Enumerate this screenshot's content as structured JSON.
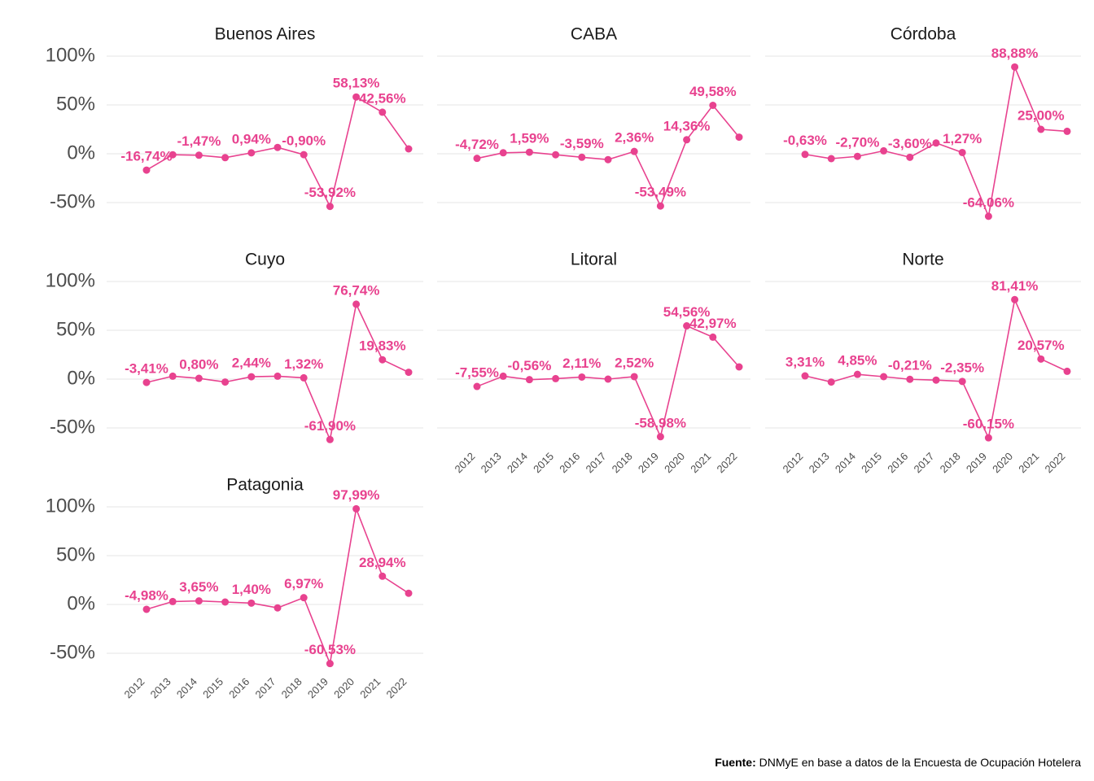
{
  "chart_data": [
    {
      "type": "line",
      "title": "Buenos Aires",
      "categories": [
        "2012",
        "2013",
        "2014",
        "2015",
        "2016",
        "2017",
        "2018",
        "2019",
        "2020",
        "2021",
        "2022"
      ],
      "series": [
        {
          "color": "#e8428f",
          "values": [
            -16.74,
            -1.0,
            -1.47,
            -4.0,
            0.94,
            6.5,
            -0.9,
            -53.92,
            58.13,
            42.56,
            5.0
          ],
          "value_labels": [
            "-16,74%",
            null,
            "-1,47%",
            null,
            "0,94%",
            null,
            "-0,90%",
            "-53,92%",
            "58,13%",
            "42,56%",
            null
          ]
        }
      ],
      "ylim": [
        -66,
        104
      ],
      "yticks": [
        {
          "value": 100,
          "label": "100%"
        },
        {
          "value": 50,
          "label": "50%"
        },
        {
          "value": 0,
          "label": "0%"
        },
        {
          "value": -50,
          "label": "-50%"
        }
      ],
      "grid": true,
      "x_tick_labels": false
    },
    {
      "type": "line",
      "title": "CABA",
      "categories": [
        "2012",
        "2013",
        "2014",
        "2015",
        "2016",
        "2017",
        "2018",
        "2019",
        "2020",
        "2021",
        "2022"
      ],
      "series": [
        {
          "color": "#e8428f",
          "values": [
            -4.72,
            1.0,
            1.59,
            -1.0,
            -3.59,
            -6.0,
            2.36,
            -53.49,
            14.36,
            49.58,
            17.0
          ],
          "value_labels": [
            "-4,72%",
            null,
            "1,59%",
            null,
            "-3,59%",
            null,
            "2,36%",
            "-53,49%",
            "14,36%",
            "49,58%",
            null
          ]
        }
      ],
      "ylim": [
        -66,
        104
      ],
      "grid": true,
      "x_tick_labels": false
    },
    {
      "type": "line",
      "title": "Córdoba",
      "categories": [
        "2012",
        "2013",
        "2014",
        "2015",
        "2016",
        "2017",
        "2018",
        "2019",
        "2020",
        "2021",
        "2022"
      ],
      "series": [
        {
          "color": "#e8428f",
          "values": [
            -0.63,
            -5.0,
            -2.7,
            3.0,
            -3.6,
            11.0,
            1.27,
            -64.06,
            88.88,
            25.0,
            23.0
          ],
          "value_labels": [
            "-0,63%",
            null,
            "-2,70%",
            null,
            "-3,60%",
            null,
            "1,27%",
            "-64,06%",
            "88,88%",
            "25,00%",
            null
          ]
        }
      ],
      "ylim": [
        -66,
        104
      ],
      "grid": true,
      "x_tick_labels": false
    },
    {
      "type": "line",
      "title": "Cuyo",
      "categories": [
        "2012",
        "2013",
        "2014",
        "2015",
        "2016",
        "2017",
        "2018",
        "2019",
        "2020",
        "2021",
        "2022"
      ],
      "series": [
        {
          "color": "#e8428f",
          "values": [
            -3.41,
            3.0,
            0.8,
            -3.0,
            2.44,
            3.0,
            1.32,
            -61.9,
            76.74,
            19.83,
            7.0
          ],
          "value_labels": [
            "-3,41%",
            null,
            "0,80%",
            null,
            "2,44%",
            null,
            "1,32%",
            "-61,90%",
            "76,74%",
            "19,83%",
            null
          ]
        }
      ],
      "ylim": [
        -66,
        104
      ],
      "yticks": [
        {
          "value": 100,
          "label": "100%"
        },
        {
          "value": 50,
          "label": "50%"
        },
        {
          "value": 0,
          "label": "0%"
        },
        {
          "value": -50,
          "label": "-50%"
        }
      ],
      "grid": true,
      "x_tick_labels": false
    },
    {
      "type": "line",
      "title": "Litoral",
      "categories": [
        "2012",
        "2013",
        "2014",
        "2015",
        "2016",
        "2017",
        "2018",
        "2019",
        "2020",
        "2021",
        "2022"
      ],
      "series": [
        {
          "color": "#e8428f",
          "values": [
            -7.55,
            3.0,
            -0.56,
            0.5,
            2.11,
            0.0,
            2.52,
            -58.98,
            54.56,
            42.97,
            12.5
          ],
          "value_labels": [
            "-7,55%",
            null,
            "-0,56%",
            null,
            "2,11%",
            null,
            "2,52%",
            "-58,98%",
            "54,56%",
            "42,97%",
            null
          ]
        }
      ],
      "ylim": [
        -66,
        104
      ],
      "grid": true,
      "x_tick_labels": true
    },
    {
      "type": "line",
      "title": "Norte",
      "categories": [
        "2012",
        "2013",
        "2014",
        "2015",
        "2016",
        "2017",
        "2018",
        "2019",
        "2020",
        "2021",
        "2022"
      ],
      "series": [
        {
          "color": "#e8428f",
          "values": [
            3.31,
            -3.0,
            4.85,
            2.5,
            -0.21,
            -1.0,
            -2.35,
            -60.15,
            81.41,
            20.57,
            8.0
          ],
          "value_labels": [
            "3,31%",
            null,
            "4,85%",
            null,
            "-0,21%",
            null,
            "-2,35%",
            "-60,15%",
            "81,41%",
            "20,57%",
            null
          ]
        }
      ],
      "ylim": [
        -66,
        104
      ],
      "grid": true,
      "x_tick_labels": true
    },
    {
      "type": "line",
      "title": "Patagonia",
      "categories": [
        "2012",
        "2013",
        "2014",
        "2015",
        "2016",
        "2017",
        "2018",
        "2019",
        "2020",
        "2021",
        "2022"
      ],
      "series": [
        {
          "color": "#e8428f",
          "values": [
            -4.98,
            3.0,
            3.65,
            2.5,
            1.4,
            -3.5,
            6.97,
            -60.53,
            97.99,
            28.94,
            11.5
          ],
          "value_labels": [
            "-4,98%",
            null,
            "3,65%",
            null,
            "1,40%",
            null,
            "6,97%",
            "-60,53%",
            "97,99%",
            "28,94%",
            null
          ]
        }
      ],
      "ylim": [
        -66,
        104
      ],
      "yticks": [
        {
          "value": 100,
          "label": "100%"
        },
        {
          "value": 50,
          "label": "50%"
        },
        {
          "value": 0,
          "label": "0%"
        },
        {
          "value": -50,
          "label": "-50%"
        }
      ],
      "grid": true,
      "x_tick_labels": true
    }
  ],
  "caption": {
    "label": "Fuente:",
    "text": "DNMyE en base a datos de la Encuesta de Ocupación Hotelera"
  }
}
